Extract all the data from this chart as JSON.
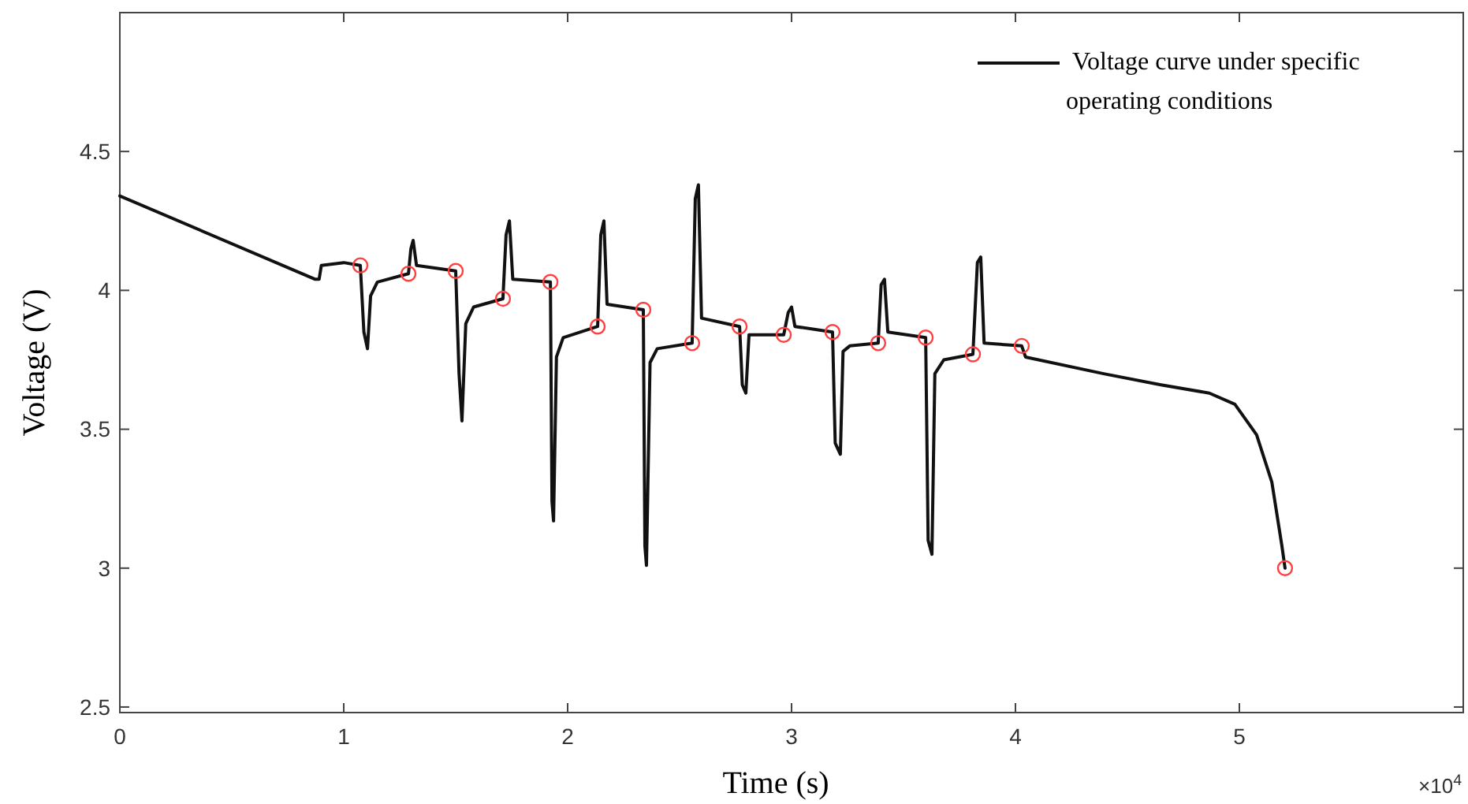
{
  "chart_data": {
    "type": "line",
    "xlabel": "Time (s)",
    "ylabel": "Voltage (V)",
    "xlim": [
      0,
      6
    ],
    "ylim": [
      2.48,
      5
    ],
    "xticks": [
      0,
      1,
      2,
      3,
      4,
      5
    ],
    "yticks": [
      2.5,
      3,
      3.5,
      4,
      4.5
    ],
    "grid": false,
    "legend": "top right",
    "annotations": [
      "×10$^{4}$"
    ],
    "series": [
      {
        "name": "Voltage curve under specific operating conditions",
        "color": "#111111",
        "marker": "none",
        "line_style": "solid",
        "x": [
          0,
          0.873,
          0.89,
          0.9,
          1.0,
          1.074,
          1.09,
          1.106,
          1.12,
          1.15,
          1.289,
          1.3,
          1.31,
          1.325,
          1.5,
          1.515,
          1.528,
          1.545,
          1.58,
          1.711,
          1.725,
          1.74,
          1.755,
          1.923,
          1.93,
          1.937,
          1.95,
          1.98,
          2.134,
          2.148,
          2.162,
          2.176,
          2.338,
          2.345,
          2.352,
          2.368,
          2.4,
          2.556,
          2.57,
          2.584,
          2.598,
          2.768,
          2.78,
          2.796,
          2.81,
          2.965,
          2.985,
          3.0,
          3.015,
          3.183,
          3.195,
          3.218,
          3.23,
          3.26,
          3.387,
          3.4,
          3.415,
          3.43,
          3.599,
          3.61,
          3.627,
          3.64,
          3.68,
          3.81,
          3.83,
          3.845,
          3.86,
          4.028,
          4.045,
          4.394,
          4.65,
          4.866,
          4.98,
          5.077,
          5.145,
          5.19,
          5.204
        ],
        "values": [
          4.34,
          4.04,
          4.04,
          4.09,
          4.1,
          4.09,
          3.85,
          3.79,
          3.98,
          4.03,
          4.06,
          4.15,
          4.18,
          4.09,
          4.07,
          3.7,
          3.53,
          3.88,
          3.94,
          3.97,
          4.2,
          4.25,
          4.04,
          4.03,
          3.24,
          3.17,
          3.76,
          3.83,
          3.87,
          4.2,
          4.25,
          3.95,
          3.93,
          3.08,
          3.01,
          3.74,
          3.79,
          3.81,
          4.33,
          4.38,
          3.9,
          3.87,
          3.66,
          3.63,
          3.84,
          3.84,
          3.92,
          3.94,
          3.87,
          3.85,
          3.45,
          3.41,
          3.78,
          3.8,
          3.81,
          4.02,
          4.04,
          3.85,
          3.83,
          3.1,
          3.05,
          3.7,
          3.75,
          3.77,
          4.1,
          4.12,
          3.81,
          3.8,
          3.76,
          3.7,
          3.66,
          3.63,
          3.59,
          3.48,
          3.31,
          3.08,
          3.0
        ]
      },
      {
        "type": "scatter",
        "color": "#ff4040",
        "marker": "circle",
        "x": [
          1.074,
          1.289,
          1.5,
          1.711,
          1.923,
          2.134,
          2.338,
          2.556,
          2.768,
          2.965,
          3.183,
          3.387,
          3.599,
          3.81,
          4.028,
          5.204
        ],
        "values": [
          4.09,
          4.06,
          4.07,
          3.97,
          4.03,
          3.87,
          3.93,
          3.81,
          3.87,
          3.84,
          3.85,
          3.81,
          3.83,
          3.77,
          3.8,
          3.0
        ]
      }
    ]
  }
}
